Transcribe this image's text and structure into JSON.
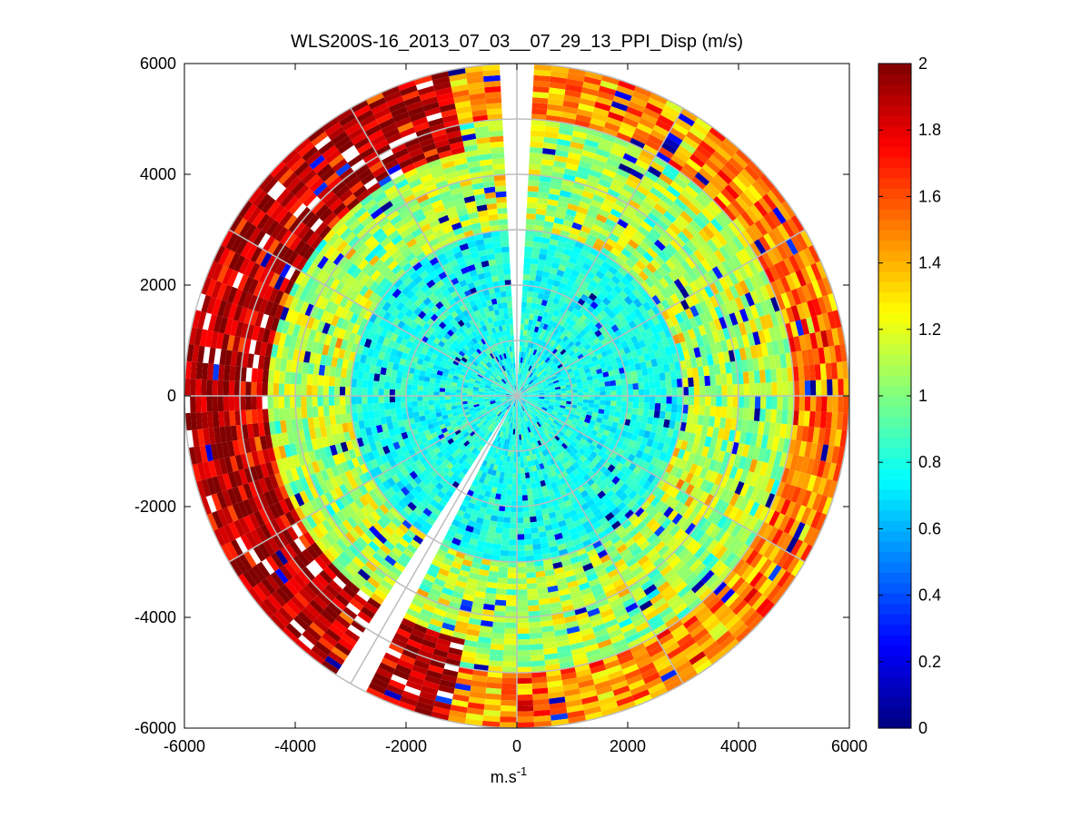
{
  "chart_data": {
    "type": "heatmap",
    "subtype": "polar-ppi",
    "title": "WLS200S-16_2013_07_03__07_29_13_PPI_Disp (m/s)",
    "xlabel": "m.s",
    "xlabel_superscript": "-1",
    "ylabel": "",
    "xlim": [
      -6000,
      6000
    ],
    "ylim": [
      -6000,
      6000
    ],
    "max_range": 6000,
    "xticks": [
      -6000,
      -4000,
      -2000,
      0,
      2000,
      4000,
      6000
    ],
    "yticks": [
      -6000,
      -4000,
      -2000,
      0,
      2000,
      4000,
      6000
    ],
    "xtick_labels": [
      "-6000",
      "-4000",
      "-2000",
      "0",
      "2000",
      "4000",
      "6000"
    ],
    "ytick_labels": [
      "-6000",
      "-4000",
      "-2000",
      "0",
      "2000",
      "4000",
      "6000"
    ],
    "polar_grid_rings": [
      1000,
      2000,
      3000,
      4000,
      5000,
      6000
    ],
    "polar_grid_spoke_step_deg": 30,
    "gap_sectors_deg": [
      {
        "center_azimuth": 0,
        "width": 6
      },
      {
        "center_azimuth": 210,
        "width": 5
      }
    ],
    "colorbar": {
      "range": [
        0,
        2
      ],
      "ticks": [
        0,
        0.2,
        0.4,
        0.6,
        0.8,
        1,
        1.2,
        1.4,
        1.6,
        1.8,
        2
      ],
      "tick_labels": [
        "0",
        "0.2",
        "0.4",
        "0.6",
        "0.8",
        "1",
        "1.2",
        "1.4",
        "1.6",
        "1.8",
        "2"
      ],
      "colormap": "jet"
    },
    "dominant_values": {
      "inner_region_0_to_3000m": 0.8,
      "middle_region_3000_to_5000m": 1.1,
      "outer_west_region_4500_to_6000m": 1.9
    }
  }
}
